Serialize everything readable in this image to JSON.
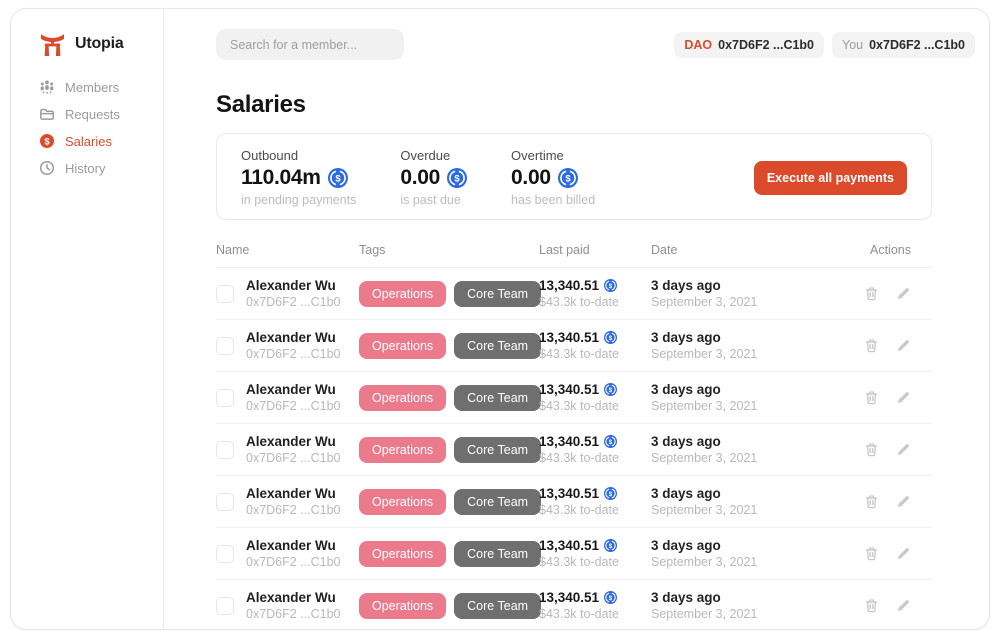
{
  "colors": {
    "accent": "#DB4A2B",
    "coin_blue": "#2B6AE0",
    "tag_pink": "#EA7A8C",
    "tag_dark": "#6F6F6F"
  },
  "app": {
    "name": "Utopia"
  },
  "sidebar": {
    "items": [
      {
        "label": "Members",
        "icon": "members-icon"
      },
      {
        "label": "Requests",
        "icon": "requests-icon"
      },
      {
        "label": "Salaries",
        "icon": "salaries-icon",
        "active": true
      },
      {
        "label": "History",
        "icon": "history-icon"
      }
    ]
  },
  "header": {
    "search_placeholder": "Search for a member...",
    "chips": [
      {
        "label": "DAO",
        "value": "0x7D6F2 ...C1b0"
      },
      {
        "label": "You",
        "value": "0x7D6F2 ...C1b0"
      }
    ]
  },
  "page": {
    "title": "Salaries"
  },
  "summary": {
    "stats": [
      {
        "label": "Outbound",
        "value": "110.04m",
        "caption": "in pending payments",
        "icon": "usdc-coin-icon"
      },
      {
        "label": "Overdue",
        "value": "0.00",
        "caption": "is past due",
        "icon": "usdc-coin-icon"
      },
      {
        "label": "Overtime",
        "value": "0.00",
        "caption": "has been billed",
        "icon": "usdc-coin-icon"
      }
    ],
    "button_label": "Execute all payments"
  },
  "table": {
    "columns": [
      "Name",
      "Tags",
      "Last paid",
      "Date",
      "Actions"
    ],
    "rows": [
      {
        "name": "Alexander Wu",
        "address": "0x7D6F2 ...C1b0",
        "tags": [
          {
            "label": "Operations",
            "color": "pink"
          },
          {
            "label": "Core Team",
            "color": "dark"
          }
        ],
        "last_paid": "13,340.51",
        "to_date": "$43.3k to-date",
        "date_relative": "3 days ago",
        "date_full": "September 3, 2021"
      },
      {
        "name": "Alexander Wu",
        "address": "0x7D6F2 ...C1b0",
        "tags": [
          {
            "label": "Operations",
            "color": "pink"
          },
          {
            "label": "Core Team",
            "color": "dark"
          }
        ],
        "last_paid": "13,340.51",
        "to_date": "$43.3k to-date",
        "date_relative": "3 days ago",
        "date_full": "September 3, 2021"
      },
      {
        "name": "Alexander Wu",
        "address": "0x7D6F2 ...C1b0",
        "tags": [
          {
            "label": "Operations",
            "color": "pink"
          },
          {
            "label": "Core Team",
            "color": "dark"
          }
        ],
        "last_paid": "13,340.51",
        "to_date": "$43.3k to-date",
        "date_relative": "3 days ago",
        "date_full": "September 3, 2021"
      },
      {
        "name": "Alexander Wu",
        "address": "0x7D6F2 ...C1b0",
        "tags": [
          {
            "label": "Operations",
            "color": "pink"
          },
          {
            "label": "Core Team",
            "color": "dark"
          }
        ],
        "last_paid": "13,340.51",
        "to_date": "$43.3k to-date",
        "date_relative": "3 days ago",
        "date_full": "September 3, 2021"
      },
      {
        "name": "Alexander Wu",
        "address": "0x7D6F2 ...C1b0",
        "tags": [
          {
            "label": "Operations",
            "color": "pink"
          },
          {
            "label": "Core Team",
            "color": "dark"
          }
        ],
        "last_paid": "13,340.51",
        "to_date": "$43.3k to-date",
        "date_relative": "3 days ago",
        "date_full": "September 3, 2021"
      },
      {
        "name": "Alexander Wu",
        "address": "0x7D6F2 ...C1b0",
        "tags": [
          {
            "label": "Operations",
            "color": "pink"
          },
          {
            "label": "Core Team",
            "color": "dark"
          }
        ],
        "last_paid": "13,340.51",
        "to_date": "$43.3k to-date",
        "date_relative": "3 days ago",
        "date_full": "September 3, 2021"
      },
      {
        "name": "Alexander Wu",
        "address": "0x7D6F2 ...C1b0",
        "tags": [
          {
            "label": "Operations",
            "color": "pink"
          },
          {
            "label": "Core Team",
            "color": "dark"
          }
        ],
        "last_paid": "13,340.51",
        "to_date": "$43.3k to-date",
        "date_relative": "3 days ago",
        "date_full": "September 3, 2021"
      }
    ]
  }
}
